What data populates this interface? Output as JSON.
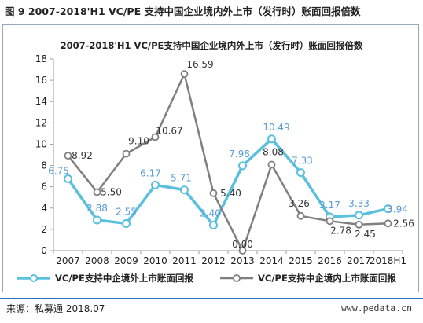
{
  "figure_title": "图 9 2007-2018'H1 VC/PE 支持中国企业境内外上市（发行时）账面回报倍数",
  "source_text": "来源：私募通 2018.07",
  "site_text": "www.pedata.cn",
  "colors": {
    "series1": "#5bc0de",
    "series2": "#7f7f7f",
    "series1_label": "#5b9bd5",
    "series2_label": "#333333",
    "footer_line": "#2a6fb5"
  },
  "chart_data": {
    "type": "line",
    "title": "2007-2018'H1 VC/PE支持中国企业境内外上市（发行时）账面回报倍数",
    "categories": [
      "2007",
      "2008",
      "2009",
      "2010",
      "2011",
      "2012",
      "2013",
      "2014",
      "2015",
      "2016",
      "2017",
      "2018H1"
    ],
    "yticks": [
      "0",
      "2",
      "4",
      "6",
      "8",
      "10",
      "12",
      "14",
      "16",
      "18"
    ],
    "ylim": [
      0,
      18
    ],
    "grid": false,
    "legend_position": "bottom",
    "series": [
      {
        "name": "VC/PE支持中企境外上市账面回报",
        "values": [
          6.75,
          2.88,
          2.55,
          6.17,
          5.71,
          2.4,
          7.98,
          10.49,
          7.33,
          3.17,
          3.33,
          3.94
        ],
        "labels": [
          "6.75",
          "2.88",
          "2.55",
          "6.17",
          "5.71",
          "2.40",
          "7.98",
          "10.49",
          "7.33",
          "3.17",
          "3.33",
          "3.94"
        ]
      },
      {
        "name": "VC/PE支持中企境内上市账面回报",
        "values": [
          8.92,
          5.5,
          9.1,
          10.67,
          16.59,
          5.4,
          0.0,
          8.08,
          3.26,
          2.78,
          2.45,
          2.56
        ],
        "labels": [
          "8.92",
          "5.50",
          "9.10",
          "10.67",
          "16.59",
          "5.40",
          "0.00",
          "8.08",
          "3.26",
          "2.78",
          "2.45",
          "2.56"
        ]
      }
    ]
  }
}
